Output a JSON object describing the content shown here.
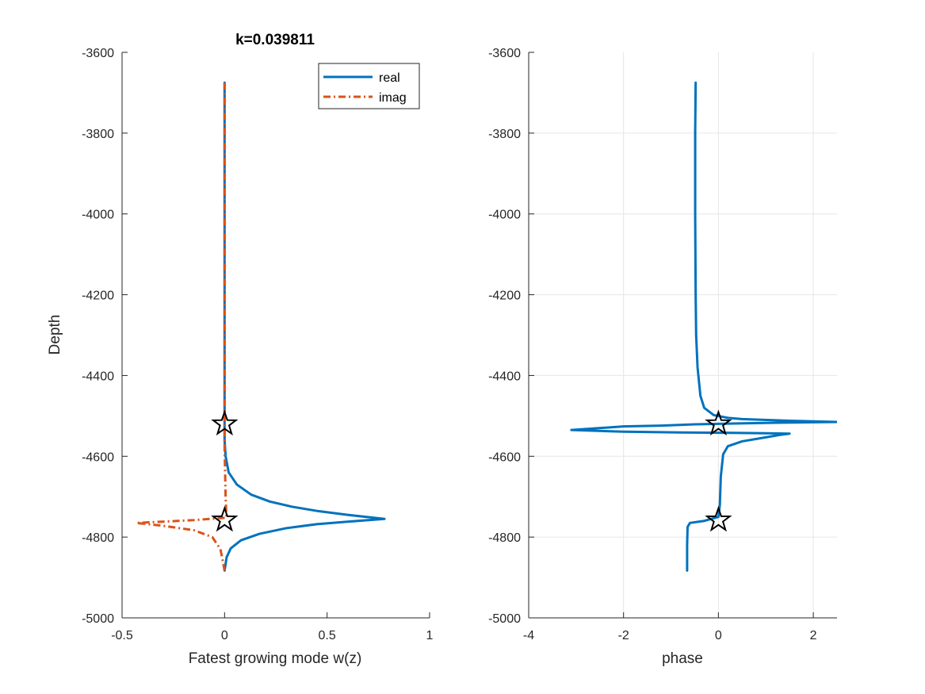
{
  "colors": {
    "real": "#0072BD",
    "imag": "#D95319",
    "axis": "#262626",
    "grid": "#e6e6e6",
    "marker": "#000000"
  },
  "chart_data": [
    {
      "type": "line",
      "title": "k=0.039811",
      "xlabel": "Fatest growing mode w(z)",
      "ylabel": "Depth",
      "xlim": [
        -0.5,
        1
      ],
      "ylim": [
        -5000,
        -3600
      ],
      "xticks": [
        -0.5,
        0,
        0.5,
        1
      ],
      "xtick_labels": [
        "-0.5",
        "0",
        "0.5",
        "1"
      ],
      "yticks": [
        -5000,
        -4800,
        -4600,
        -4400,
        -4200,
        -4000,
        -3800,
        -3600
      ],
      "ytick_labels": [
        "-5000",
        "-4800",
        "-4600",
        "-4400",
        "-4200",
        "-4000",
        "-3800",
        "-3600"
      ],
      "grid": false,
      "legend": "top-right",
      "series": [
        {
          "name": "real",
          "style": "solid",
          "points": [
            [
              0,
              -3675
            ],
            [
              0,
              -4400
            ],
            [
              0,
              -4560
            ],
            [
              0.005,
              -4600
            ],
            [
              0.02,
              -4640
            ],
            [
              0.06,
              -4670
            ],
            [
              0.13,
              -4695
            ],
            [
              0.22,
              -4712
            ],
            [
              0.33,
              -4725
            ],
            [
              0.46,
              -4736
            ],
            [
              0.6,
              -4745
            ],
            [
              0.78,
              -4755
            ],
            [
              0.6,
              -4762
            ],
            [
              0.45,
              -4768
            ],
            [
              0.3,
              -4778
            ],
            [
              0.17,
              -4792
            ],
            [
              0.08,
              -4808
            ],
            [
              0.03,
              -4828
            ],
            [
              0.01,
              -4850
            ],
            [
              0,
              -4883
            ]
          ]
        },
        {
          "name": "imag",
          "style": "dashdot",
          "points": [
            [
              0,
              -3675
            ],
            [
              0,
              -4400
            ],
            [
              0,
              -4580
            ],
            [
              0.003,
              -4650
            ],
            [
              0.005,
              -4700
            ],
            [
              0.008,
              -4740
            ],
            [
              0.01,
              -4752
            ],
            [
              -0.15,
              -4758
            ],
            [
              -0.43,
              -4765
            ],
            [
              -0.3,
              -4772
            ],
            [
              -0.15,
              -4783
            ],
            [
              -0.06,
              -4800
            ],
            [
              -0.02,
              -4830
            ],
            [
              0,
              -4883
            ]
          ]
        }
      ],
      "markers": [
        {
          "shape": "star",
          "x": 0,
          "y": -4520
        },
        {
          "shape": "star",
          "x": 0,
          "y": -4758
        }
      ]
    },
    {
      "type": "line",
      "title": "",
      "xlabel": "phase",
      "ylabel": "",
      "xlim": [
        -4,
        2.5
      ],
      "ylim": [
        -5000,
        -3600
      ],
      "xticks": [
        -4,
        -2,
        0,
        2
      ],
      "xtick_labels": [
        "-4",
        "-2",
        "0",
        "2"
      ],
      "yticks": [
        -5000,
        -4800,
        -4600,
        -4400,
        -4200,
        -4000,
        -3800,
        -3600
      ],
      "ytick_labels": [
        "-5000",
        "-4800",
        "-4600",
        "-4400",
        "-4200",
        "-4000",
        "-3800",
        "-3600"
      ],
      "grid": true,
      "legend": "none",
      "series": [
        {
          "name": "",
          "style": "solid",
          "points": [
            [
              -0.48,
              -3675
            ],
            [
              -0.49,
              -3800
            ],
            [
              -0.49,
              -4000
            ],
            [
              -0.48,
              -4200
            ],
            [
              -0.47,
              -4300
            ],
            [
              -0.44,
              -4380
            ],
            [
              -0.38,
              -4450
            ],
            [
              -0.3,
              -4480
            ],
            [
              -0.1,
              -4498
            ],
            [
              0.2,
              -4505
            ],
            [
              0.5,
              -4508
            ],
            [
              1.5,
              -4512
            ],
            [
              2.5,
              -4515
            ],
            [
              1.2,
              -4517
            ],
            [
              0.3,
              -4519
            ],
            [
              -0.5,
              -4521
            ],
            [
              -1.2,
              -4524
            ],
            [
              -2.0,
              -4526
            ],
            [
              -3.1,
              -4535
            ],
            [
              -2.0,
              -4539
            ],
            [
              -0.8,
              -4541
            ],
            [
              0.3,
              -4542
            ],
            [
              1.0,
              -4543
            ],
            [
              1.5,
              -4544
            ],
            [
              1.3,
              -4547
            ],
            [
              1.0,
              -4553
            ],
            [
              0.5,
              -4563
            ],
            [
              0.2,
              -4575
            ],
            [
              0.1,
              -4595
            ],
            [
              0.05,
              -4650
            ],
            [
              0.03,
              -4720
            ],
            [
              0.0,
              -4750
            ],
            [
              -0.3,
              -4760
            ],
            [
              -0.6,
              -4765
            ],
            [
              -0.65,
              -4775
            ],
            [
              -0.66,
              -4820
            ],
            [
              -0.66,
              -4883
            ]
          ]
        }
      ],
      "markers": [
        {
          "shape": "star",
          "x": 0,
          "y": -4520
        },
        {
          "shape": "star",
          "x": 0,
          "y": -4758
        }
      ]
    }
  ]
}
